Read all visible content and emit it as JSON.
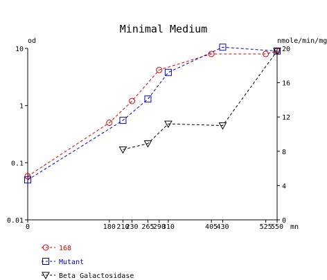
{
  "chart_data": {
    "type": "line",
    "title": "Minimal Medium",
    "left_axis": {
      "label": "od",
      "scale": "log",
      "range": [
        0.01,
        10
      ],
      "ticks": [
        {
          "v": 0.01,
          "label": "0.01"
        },
        {
          "v": 0.1,
          "label": "0.1"
        },
        {
          "v": 1,
          "label": "1"
        },
        {
          "v": 10,
          "label": "10"
        }
      ]
    },
    "right_axis": {
      "label": "nmole/min/mg",
      "scale": "linear",
      "range": [
        0,
        20
      ],
      "ticks": [
        {
          "v": 0,
          "label": "0"
        },
        {
          "v": 4,
          "label": "4"
        },
        {
          "v": 8,
          "label": "8"
        },
        {
          "v": 12,
          "label": "12"
        },
        {
          "v": 16,
          "label": "16"
        },
        {
          "v": 20,
          "label": "20"
        }
      ]
    },
    "x_axis": {
      "unit_label": "mn",
      "range": [
        0,
        550
      ],
      "ticks": [
        {
          "v": 0,
          "label": "0"
        },
        {
          "v": 180,
          "label": "180"
        },
        {
          "v": 210,
          "label": "210"
        },
        {
          "v": 230,
          "label": "230"
        },
        {
          "v": 265,
          "label": "265"
        },
        {
          "v": 290,
          "label": "290"
        },
        {
          "v": 310,
          "label": "310"
        },
        {
          "v": 405,
          "label": "405"
        },
        {
          "v": 430,
          "label": "430"
        },
        {
          "v": 525,
          "label": "525"
        },
        {
          "v": 550,
          "label": "550"
        }
      ]
    },
    "series": [
      {
        "name": "168",
        "axis": "left",
        "color": "#dd0000",
        "marker": "circle",
        "x": [
          0,
          180,
          230,
          290,
          405,
          525,
          550
        ],
        "y": [
          0.058,
          0.5,
          1.2,
          4.2,
          8.0,
          8.0,
          9.0
        ]
      },
      {
        "name": "Mutant",
        "axis": "left",
        "color": "#0000cc",
        "marker": "square",
        "x": [
          0,
          210,
          265,
          310,
          430,
          550
        ],
        "y": [
          0.05,
          0.55,
          1.3,
          3.8,
          10.5,
          9.0
        ]
      },
      {
        "name": "Beta Galactosidase",
        "axis": "right",
        "color": "#000000",
        "marker": "triangle-down",
        "x": [
          210,
          265,
          310,
          430,
          550
        ],
        "y": [
          8.2,
          8.9,
          11.2,
          11.0,
          19.7
        ]
      }
    ],
    "legend_position": "bottom-left"
  }
}
